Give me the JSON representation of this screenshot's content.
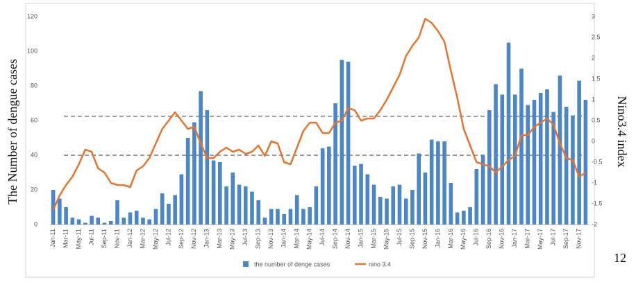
{
  "chart_data": {
    "type": "bar-line",
    "ylabel": "The Number of dengue cases",
    "y2label": "Nino3.4 index",
    "page_number": "12",
    "categories": [
      "Jan-11",
      null,
      "Mar-11",
      null,
      "May-11",
      null,
      "Jul-11",
      null,
      "Sep-11",
      null,
      "Nov-11",
      null,
      "Jan-12",
      null,
      "Mar-12",
      null,
      "May-12",
      null,
      "Jul-12",
      null,
      "Sep-12",
      null,
      "Nov-12",
      null,
      "Jan-13",
      null,
      "Mar-13",
      null,
      "May-13",
      null,
      "Jul-13",
      null,
      "Sep-13",
      null,
      "Nov-13",
      null,
      "Jan-14",
      null,
      "Mar-14",
      null,
      "May-14",
      null,
      "Jul-14",
      null,
      "Sep-14",
      null,
      "Nov-14",
      null,
      "Jan-15",
      null,
      "Mar-15",
      null,
      "May-15",
      null,
      "Jul-15",
      null,
      "Sep-15",
      null,
      "Nov-15",
      null,
      "Jan-16",
      null,
      "Mar-16",
      null,
      "May-16",
      null,
      "Jul-16",
      null,
      "Sep-16",
      null,
      "Nov-16",
      null,
      "Jan-17",
      null,
      "Mar-17",
      null,
      "May-17",
      null,
      "Jul-17",
      null,
      "Sep-17",
      null,
      "Nov-17",
      null
    ],
    "series": [
      {
        "name": "the number of denge cases",
        "type": "bar",
        "color": "#4a86c8",
        "values": [
          20,
          15,
          10,
          4,
          3,
          1,
          5,
          4,
          1,
          2,
          14,
          4,
          7,
          8,
          4,
          3,
          9,
          18,
          12,
          17,
          29,
          50,
          59,
          77,
          66,
          37,
          36,
          22,
          30,
          23,
          22,
          19,
          14,
          4,
          9,
          9,
          6,
          9,
          17,
          9,
          10,
          22,
          44,
          45,
          70,
          95,
          94,
          34,
          35,
          29,
          23,
          16,
          15,
          22,
          23,
          15,
          20,
          41,
          30,
          49,
          48,
          48,
          24,
          7,
          8,
          10,
          32,
          40,
          66,
          81,
          75,
          105,
          75,
          90,
          69,
          72,
          76,
          78,
          65,
          86,
          68,
          63,
          83,
          72
        ]
      },
      {
        "name": "nino 3.4",
        "type": "line",
        "axis": "y2",
        "color": "#e8732a",
        "values": [
          -1.65,
          -1.3,
          -1.05,
          -0.85,
          -0.55,
          -0.2,
          -0.25,
          -0.65,
          -0.75,
          -1.0,
          -1.05,
          -1.05,
          -1.1,
          -0.7,
          -0.6,
          -0.4,
          -0.05,
          0.3,
          0.5,
          0.7,
          0.5,
          0.3,
          0.35,
          -0.05,
          -0.4,
          -0.4,
          -0.25,
          -0.15,
          -0.25,
          -0.2,
          -0.3,
          -0.25,
          -0.1,
          -0.35,
          0,
          -0.05,
          -0.5,
          -0.55,
          -0.15,
          0.25,
          0.45,
          0.45,
          0.2,
          0.2,
          0.45,
          0.5,
          0.8,
          0.75,
          0.5,
          0.55,
          0.55,
          0.75,
          1.0,
          1.3,
          1.6,
          2.05,
          2.3,
          2.5,
          2.95,
          2.85,
          2.65,
          2.4,
          1.7,
          1.05,
          0.3,
          -0.1,
          -0.5,
          -0.55,
          -0.6,
          -0.75,
          -0.6,
          -0.45,
          -0.35,
          0.15,
          0.15,
          0.35,
          0.45,
          0.55,
          0.4,
          -0.05,
          -0.4,
          -0.45,
          -0.85,
          -0.75
        ]
      }
    ],
    "ylim": [
      0,
      120
    ],
    "yticks": [
      0,
      20,
      40,
      60,
      80,
      100,
      120
    ],
    "y2lim": [
      -2,
      3
    ],
    "y2ticks": [
      -2,
      -1.5,
      -1,
      -0.5,
      0,
      0.5,
      1,
      1.5,
      2,
      2.5,
      3
    ],
    "reference_lines": [
      62.5,
      40
    ],
    "grid": false,
    "legend": "bottom"
  }
}
